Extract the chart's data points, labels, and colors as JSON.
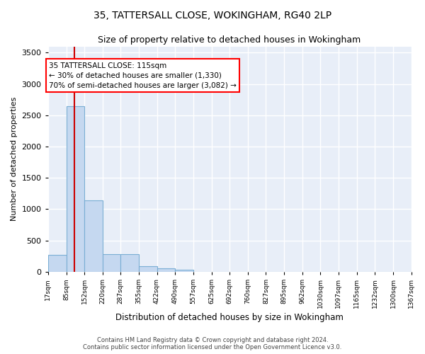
{
  "title": "35, TATTERSALL CLOSE, WOKINGHAM, RG40 2LP",
  "subtitle": "Size of property relative to detached houses in Wokingham",
  "xlabel": "Distribution of detached houses by size in Wokingham",
  "ylabel": "Number of detached properties",
  "bar_color": "#c5d8f0",
  "bar_edge_color": "#7aaed4",
  "background_color": "#e8eef8",
  "grid_color": "#ffffff",
  "annotation_line1": "35 TATTERSALL CLOSE: 115sqm",
  "annotation_line2": "← 30% of detached houses are smaller (1,330)",
  "annotation_line3": "70% of semi-detached houses are larger (3,082) →",
  "vline_x": 115,
  "vline_color": "#cc0000",
  "footer_line1": "Contains HM Land Registry data © Crown copyright and database right 2024.",
  "footer_line2": "Contains public sector information licensed under the Open Government Licence v3.0.",
  "bin_edges": [
    17,
    85,
    152,
    220,
    287,
    355,
    422,
    490,
    557,
    625,
    692,
    760,
    827,
    895,
    962,
    1030,
    1097,
    1165,
    1232,
    1300,
    1367
  ],
  "bin_counts": [
    270,
    2650,
    1140,
    285,
    285,
    95,
    55,
    35,
    0,
    0,
    0,
    0,
    0,
    0,
    0,
    0,
    0,
    0,
    0,
    0
  ],
  "ylim": [
    0,
    3600
  ],
  "yticks": [
    0,
    500,
    1000,
    1500,
    2000,
    2500,
    3000,
    3500
  ]
}
